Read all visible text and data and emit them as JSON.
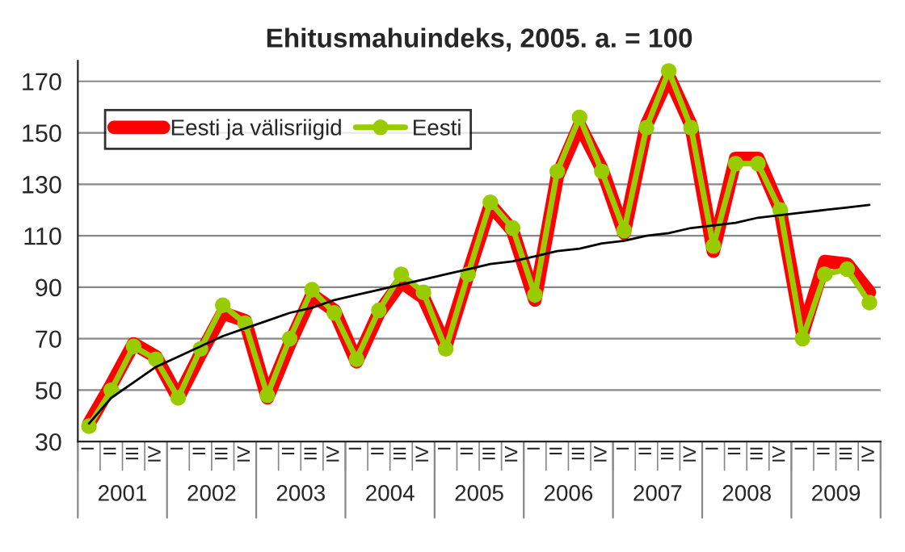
{
  "chart_data": {
    "type": "line",
    "title": "Ehitusmahuindeks, 2005. a. = 100",
    "categories": [
      "I",
      "II",
      "III",
      "IV",
      "I",
      "II",
      "III",
      "IV",
      "I",
      "II",
      "III",
      "IV",
      "I",
      "II",
      "III",
      "IV",
      "I",
      "II",
      "III",
      "IV",
      "I",
      "II",
      "III",
      "IV",
      "I",
      "II",
      "III",
      "IV",
      "I",
      "II",
      "III",
      "IV",
      "I",
      "II",
      "III",
      "IV"
    ],
    "series": [
      {
        "name": "Eesti ja välisriigid",
        "color": "#ff0000",
        "marker": "diamond",
        "values": [
          37,
          52,
          68,
          63,
          47,
          64,
          80,
          77,
          47,
          68,
          87,
          81,
          61,
          80,
          92,
          86,
          67,
          95,
          122,
          112,
          85,
          133,
          153,
          136,
          111,
          153,
          172,
          153,
          104,
          140,
          140,
          120,
          72,
          100,
          99,
          88
        ]
      },
      {
        "name": "Eesti",
        "color": "#99cc00",
        "marker": "circle",
        "values": [
          36,
          50,
          67,
          62,
          47,
          66,
          83,
          76,
          48,
          70,
          89,
          80,
          62,
          81,
          95,
          88,
          66,
          95,
          123,
          113,
          87,
          135,
          156,
          135,
          112,
          152,
          174,
          152,
          106,
          138,
          138,
          120,
          70,
          95,
          97,
          84
        ]
      },
      {
        "color": "#000000",
        "marker": "none",
        "values": [
          37,
          47,
          53,
          59,
          63,
          67,
          71,
          74,
          77,
          80,
          82,
          85,
          87,
          89,
          91,
          93,
          95,
          97,
          99,
          100,
          102,
          104,
          105,
          107,
          108,
          110,
          111,
          113,
          114,
          115,
          117,
          118,
          119,
          120,
          121,
          122
        ]
      }
    ],
    "annotations": [
      "2001",
      "2002",
      "2003",
      "2004",
      "2005",
      "2006",
      "2007",
      "2008",
      "2009"
    ],
    "ylim": [
      30,
      178
    ],
    "yticks": [
      30,
      50,
      70,
      90,
      110,
      130,
      150,
      170
    ],
    "grid": "y",
    "legend": "top left",
    "line_style": "solid"
  }
}
